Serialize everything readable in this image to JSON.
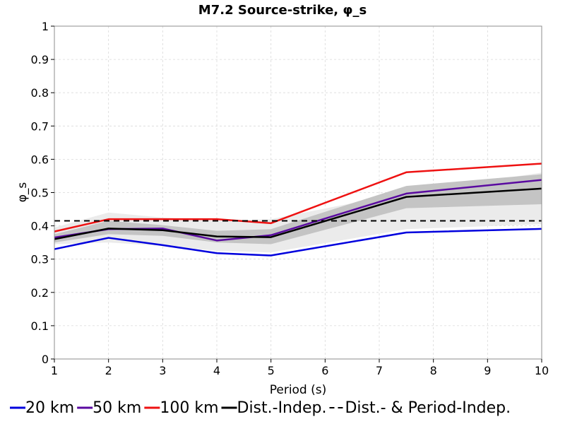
{
  "chart_data": {
    "type": "line",
    "title": "M7.2 Source-strike, φ_s",
    "xlabel": "Period (s)",
    "ylabel": "φ_s",
    "xlim": [
      1,
      10
    ],
    "ylim": [
      0,
      1
    ],
    "xticks": [
      "1",
      "2",
      "3",
      "4",
      "5",
      "6",
      "7",
      "8",
      "9",
      "10"
    ],
    "yticks": [
      "0",
      "0.1",
      "0.2",
      "0.3",
      "0.4",
      "0.5",
      "0.6",
      "0.7",
      "0.8",
      "0.9",
      "1"
    ],
    "grid": true,
    "legend_position": "bottom",
    "x": [
      1,
      2,
      3,
      4,
      5,
      7.5,
      10
    ],
    "series": [
      {
        "name": "20 km",
        "color": "#0000dd",
        "style": "solid",
        "values": [
          0.33,
          0.364,
          0.342,
          0.318,
          0.311,
          0.38,
          0.391
        ]
      },
      {
        "name": "50 km",
        "color": "#5a0aa0",
        "style": "solid",
        "values": [
          0.365,
          0.39,
          0.392,
          0.356,
          0.372,
          0.497,
          0.538
        ]
      },
      {
        "name": "100 km",
        "color": "#ee1111",
        "style": "solid",
        "values": [
          0.383,
          0.42,
          0.42,
          0.42,
          0.408,
          0.561,
          0.587
        ]
      },
      {
        "name": "Dist.-Indep.",
        "color": "#000000",
        "style": "solid",
        "values": [
          0.36,
          0.392,
          0.387,
          0.368,
          0.366,
          0.487,
          0.512
        ]
      },
      {
        "name": "Dist.- & Period-Indep.",
        "color": "#000000",
        "style": "dashed",
        "values": [
          0.415,
          0.415,
          0.415,
          0.415,
          0.415,
          0.415,
          0.415
        ]
      }
    ],
    "bands": [
      {
        "color": "#ebebeb",
        "lower": [
          0.345,
          0.35,
          0.34,
          0.325,
          0.32,
          0.39,
          0.405
        ],
        "upper": [
          0.395,
          0.44,
          0.425,
          0.415,
          0.42,
          0.5,
          0.56
        ]
      },
      {
        "color": "#c4c4c4",
        "lower": [
          0.35,
          0.375,
          0.37,
          0.35,
          0.345,
          0.453,
          0.465
        ],
        "upper": [
          0.375,
          0.415,
          0.402,
          0.385,
          0.39,
          0.52,
          0.555
        ]
      }
    ]
  }
}
